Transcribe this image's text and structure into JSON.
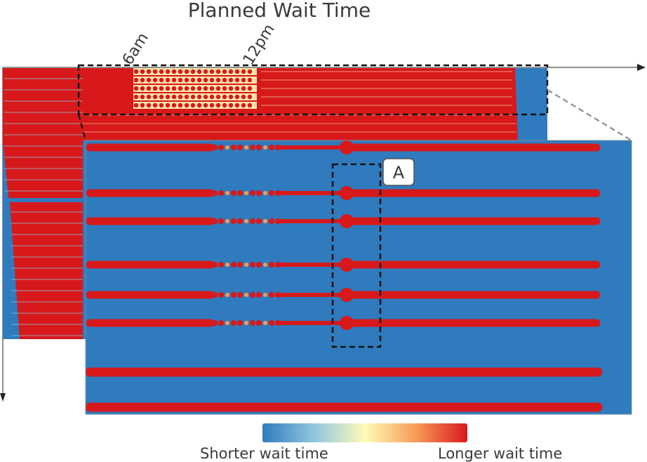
{
  "chart_data": {
    "type": "heatmap",
    "title": "Planned Wait Time",
    "x_ticks": [
      "6am",
      "12pm"
    ],
    "colorscale": {
      "low_label": "Shorter wait time",
      "high_label": "Longer wait time",
      "colors": [
        "#2f7bbd",
        "#8fc6de",
        "#fffbb8",
        "#f79b58",
        "#d7191c"
      ]
    },
    "callout_label": "A",
    "colors": {
      "background": "#2f7bbd",
      "high": "#d7191c",
      "mid": "#fffbb8"
    }
  }
}
